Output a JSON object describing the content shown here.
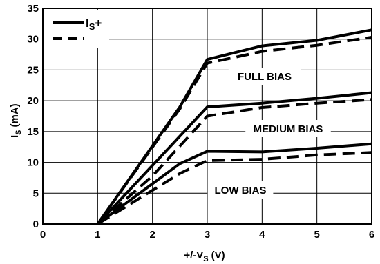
{
  "chart_data": {
    "type": "line",
    "xlabel": "+/-V",
    "xlabel_sub": "S",
    "xlabel_unit": "(V)",
    "ylabel": "I",
    "ylabel_sub": "S",
    "ylabel_unit": "(mA)",
    "xlim": [
      0,
      6
    ],
    "ylim": [
      0,
      35
    ],
    "xticks": [
      0,
      1,
      2,
      3,
      4,
      5,
      6
    ],
    "yticks": [
      0,
      5,
      10,
      15,
      20,
      25,
      30,
      35
    ],
    "grid": true,
    "legend": {
      "position": "top-left",
      "entries": [
        {
          "label_main": "I",
          "label_sub": "S",
          "label_suffix": "+",
          "style": "solid"
        },
        {
          "label_main": "",
          "label_sub": "",
          "label_suffix": "",
          "style": "dashed"
        }
      ]
    },
    "annotations": [
      {
        "text": "FULL BIAS"
      },
      {
        "text": "MEDIUM BIAS"
      },
      {
        "text": "LOW BIAS"
      }
    ],
    "series": [
      {
        "group": "FULL BIAS",
        "style": "solid",
        "x": [
          0,
          1,
          2.5,
          3,
          4,
          5,
          6
        ],
        "y": [
          0,
          0,
          19,
          26.7,
          28.9,
          29.8,
          31.5
        ]
      },
      {
        "group": "FULL BIAS",
        "style": "dashed",
        "x": [
          0,
          1,
          2.5,
          3,
          4,
          5,
          6
        ],
        "y": [
          0,
          0,
          18.7,
          26.1,
          28,
          29,
          30.3
        ]
      },
      {
        "group": "MEDIUM BIAS",
        "style": "solid",
        "x": [
          0,
          1,
          2,
          3,
          4,
          5,
          6
        ],
        "y": [
          0,
          0,
          9.5,
          19,
          19.6,
          20.4,
          21.3
        ]
      },
      {
        "group": "MEDIUM BIAS",
        "style": "dashed",
        "x": [
          0,
          1,
          2,
          3,
          4,
          5,
          6
        ],
        "y": [
          0,
          0,
          7.8,
          17.5,
          18.9,
          19.6,
          20.2
        ]
      },
      {
        "group": "LOW BIAS",
        "style": "solid",
        "x": [
          0,
          1,
          2.5,
          3,
          4,
          5,
          6
        ],
        "y": [
          0,
          0,
          9.8,
          11.8,
          11.7,
          12.3,
          13
        ]
      },
      {
        "group": "LOW BIAS",
        "style": "dashed",
        "x": [
          0,
          1,
          2.5,
          3,
          4,
          5,
          6
        ],
        "y": [
          0,
          0,
          8.2,
          10.3,
          10.5,
          11.2,
          11.6
        ]
      }
    ]
  }
}
